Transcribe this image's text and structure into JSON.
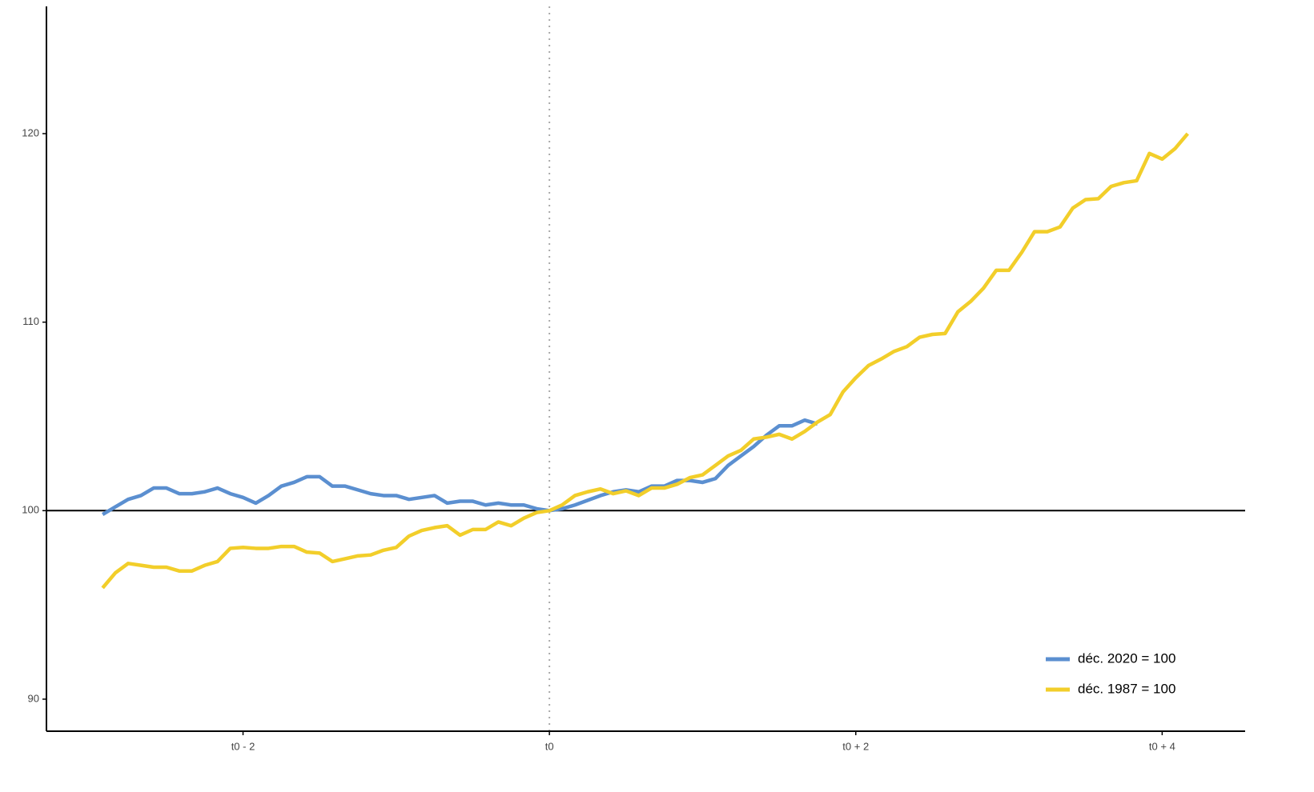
{
  "chart_data": {
    "type": "line",
    "series": [
      {
        "name": "déc. 2020 = 100",
        "color": "#5b8fd0",
        "x": [
          -35,
          -34,
          -33,
          -32,
          -31,
          -30,
          -29,
          -28,
          -27,
          -26,
          -25,
          -24,
          -23,
          -22,
          -21,
          -20,
          -19,
          -18,
          -17,
          -16,
          -15,
          -14,
          -13,
          -12,
          -11,
          -10,
          -9,
          -8,
          -7,
          -6,
          -5,
          -4,
          -3,
          -2,
          -1,
          0,
          1,
          2,
          3,
          4,
          5,
          6,
          7,
          8,
          9,
          10,
          11,
          12,
          13,
          14,
          15,
          16,
          17,
          18,
          19,
          20,
          21
        ],
        "values": [
          99.8,
          100.2,
          100.6,
          100.8,
          101.2,
          101.2,
          100.9,
          100.9,
          101.0,
          101.2,
          100.9,
          100.7,
          100.4,
          100.8,
          101.3,
          101.5,
          101.8,
          101.8,
          101.3,
          101.3,
          101.1,
          100.9,
          100.8,
          100.8,
          100.6,
          100.7,
          100.8,
          100.4,
          100.5,
          100.5,
          100.3,
          100.4,
          100.3,
          100.3,
          100.1,
          100,
          100.1,
          100.3,
          100.55,
          100.8,
          101.0,
          101.1,
          101.0,
          101.3,
          101.3,
          101.6,
          101.6,
          101.5,
          101.7,
          102.4,
          102.9,
          103.4,
          104.0,
          104.5,
          104.5,
          104.8,
          104.6
        ]
      },
      {
        "name": "déc. 1987 = 100",
        "color": "#f2ce2a",
        "x": [
          -35,
          -34,
          -33,
          -32,
          -31,
          -30,
          -29,
          -28,
          -27,
          -26,
          -25,
          -24,
          -23,
          -22,
          -21,
          -20,
          -19,
          -18,
          -17,
          -16,
          -15,
          -14,
          -13,
          -12,
          -11,
          -10,
          -9,
          -8,
          -7,
          -6,
          -5,
          -4,
          -3,
          -2,
          -1,
          0,
          1,
          2,
          3,
          4,
          5,
          6,
          7,
          8,
          9,
          10,
          11,
          12,
          13,
          14,
          15,
          16,
          17,
          18,
          19,
          20,
          21,
          22,
          23,
          24,
          25,
          26,
          27,
          28,
          29,
          30,
          31,
          32,
          33,
          34,
          35,
          36,
          37,
          38,
          39,
          40,
          41,
          42,
          43,
          44,
          45,
          46,
          47,
          48,
          49,
          50
        ],
        "values": [
          95.9,
          96.7,
          97.2,
          97.1,
          97.0,
          97.0,
          96.8,
          96.8,
          97.1,
          97.3,
          98.0,
          98.05,
          98.0,
          98.0,
          98.1,
          98.1,
          97.8,
          97.75,
          97.3,
          97.45,
          97.6,
          97.65,
          97.9,
          98.05,
          98.65,
          98.95,
          99.1,
          99.2,
          98.7,
          99.0,
          99.0,
          99.4,
          99.2,
          99.6,
          99.9,
          100,
          100.3,
          100.8,
          101.0,
          101.15,
          100.9,
          101.05,
          100.8,
          101.2,
          101.2,
          101.4,
          101.75,
          101.9,
          102.4,
          102.9,
          103.2,
          103.8,
          103.9,
          104.05,
          103.8,
          104.2,
          104.7,
          105.1,
          106.3,
          107.05,
          107.7,
          108.05,
          108.45,
          108.7,
          109.2,
          109.35,
          109.4,
          110.55,
          111.1,
          111.8,
          112.75,
          112.75,
          113.7,
          114.8,
          114.8,
          115.05,
          116.05,
          116.5,
          116.55,
          117.2,
          117.4,
          117.5,
          118.95,
          118.65,
          119.2,
          120.0
        ]
      }
    ],
    "xlim": [
      -39.4,
      54.5
    ],
    "xticks": [
      {
        "value": -24,
        "label": "t0 - 2"
      },
      {
        "value": 0,
        "label": "t0"
      },
      {
        "value": 24,
        "label": "t0 + 2"
      },
      {
        "value": 48,
        "label": "t0 + 4"
      }
    ],
    "ylim": [
      88.3,
      126.75
    ],
    "yticks": [
      90,
      100,
      110,
      120
    ],
    "hline": 100,
    "vline": 0,
    "legend": "bottom-right"
  }
}
